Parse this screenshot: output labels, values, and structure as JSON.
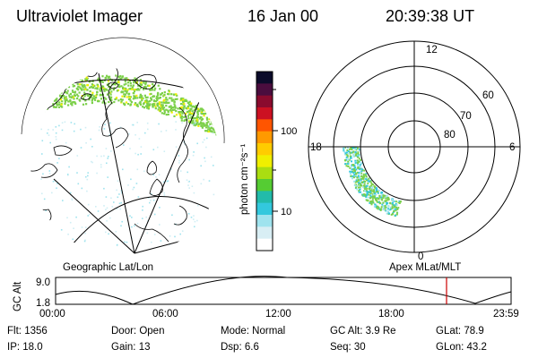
{
  "header": {
    "title": "Ultraviolet Imager",
    "date": "16 Jan 00",
    "time": "20:39:38 UT"
  },
  "colorbar": {
    "unit_label": "photon cm⁻²s⁻¹",
    "ticks": [
      "100",
      "10"
    ],
    "colors": [
      "#0b0b2a",
      "#4a0d3e",
      "#8a0b2e",
      "#cc1122",
      "#ff5500",
      "#ff9900",
      "#ffcc00",
      "#f0ef00",
      "#aadd11",
      "#55cc33",
      "#22bbaa",
      "#33c8dd",
      "#9fe3ee",
      "#d8eef4",
      "#ffffff"
    ]
  },
  "left_map": {
    "caption": "Geographic Lat/Lon",
    "aurora_color": "#7cd04a",
    "aurora_hot": "#f0ef00"
  },
  "polar_plot": {
    "caption": "Apex MLat/MLT",
    "lat_labels": [
      "60",
      "70",
      "80"
    ],
    "mlt_labels": [
      "12",
      "18",
      "6",
      "0"
    ]
  },
  "timeline": {
    "ylabel": "GC Alt",
    "yticks": [
      "9.0",
      "1.8"
    ],
    "xticks": [
      "00:00",
      "06:00",
      "12:00",
      "18:00",
      "23:59"
    ],
    "marker_color": "#cc0000"
  },
  "status": {
    "row1": [
      {
        "label": "Flt:",
        "value": "1356"
      },
      {
        "label": "Door:",
        "value": "Open"
      },
      {
        "label": "Mode:",
        "value": "Normal"
      },
      {
        "label": "GC Alt:",
        "value": "3.9 Re"
      },
      {
        "label": "GLat:",
        "value": "78.9"
      }
    ],
    "row2": [
      {
        "label": "IP:",
        "value": "18.0"
      },
      {
        "label": "Gain:",
        "value": "13"
      },
      {
        "label": "Dsp:",
        "value": "6.6"
      },
      {
        "label": "Seq:",
        "value": "30"
      },
      {
        "label": "GLon:",
        "value": "43.2"
      }
    ]
  }
}
